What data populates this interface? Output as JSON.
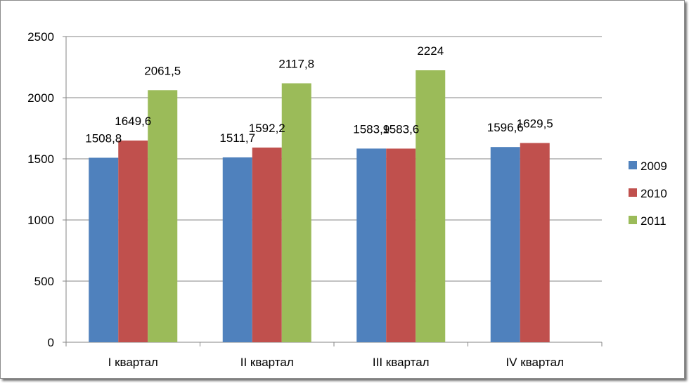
{
  "chart_data": {
    "type": "bar",
    "title": "",
    "xlabel": "",
    "ylabel": "",
    "categories": [
      "I квартал",
      "II квартал",
      "III квартал",
      "IV квартал"
    ],
    "series": [
      {
        "name": "2009",
        "color": "#4f81bd",
        "values": [
          1508.8,
          1511.7,
          1583.9,
          1596.6
        ],
        "labels": [
          "1508,8",
          "1511,7",
          "1583,9",
          "1596,6"
        ]
      },
      {
        "name": "2010",
        "color": "#c0504d",
        "values": [
          1649.6,
          1592.2,
          1583.6,
          1629.5
        ],
        "labels": [
          "1649,6",
          "1592,2",
          "1583,6",
          "1629,5"
        ]
      },
      {
        "name": "2011",
        "color": "#9bbb59",
        "values": [
          2061.5,
          2117.8,
          2224,
          null
        ],
        "labels": [
          "2061,5",
          "2117,8",
          "2224",
          ""
        ]
      }
    ],
    "ylim": [
      0,
      2500
    ],
    "yticks": [
      0,
      500,
      1000,
      1500,
      2000,
      2500
    ],
    "grid": true,
    "legend_position": "right"
  }
}
